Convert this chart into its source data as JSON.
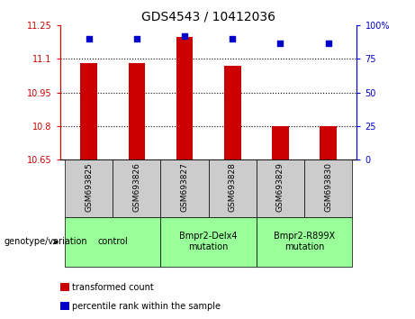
{
  "title": "GDS4543 / 10412036",
  "samples": [
    "GSM693825",
    "GSM693826",
    "GSM693827",
    "GSM693828",
    "GSM693829",
    "GSM693830"
  ],
  "bar_values": [
    11.08,
    11.08,
    11.2,
    11.07,
    10.8,
    10.8
  ],
  "percentile_values": [
    90,
    90,
    92,
    90,
    87,
    87
  ],
  "ylim_left": [
    10.65,
    11.25
  ],
  "ylim_right": [
    0,
    100
  ],
  "yticks_left": [
    10.65,
    10.8,
    10.95,
    11.1,
    11.25
  ],
  "yticks_right": [
    0,
    25,
    50,
    75,
    100
  ],
  "ytick_labels_left": [
    "10.65",
    "10.8",
    "10.95",
    "11.1",
    "11.25"
  ],
  "ytick_labels_right": [
    "0",
    "25",
    "50",
    "75",
    "100%"
  ],
  "bar_color": "#cc0000",
  "dot_color": "#0000cc",
  "bar_bottom": 10.65,
  "groups": [
    {
      "label": "control",
      "start": 0,
      "end": 2
    },
    {
      "label": "Bmpr2-Delx4\nmutation",
      "start": 2,
      "end": 4
    },
    {
      "label": "Bmpr2-R899X\nmutation",
      "start": 4,
      "end": 6
    }
  ],
  "group_bg_color": "#99ff99",
  "sample_bg_color": "#cccccc",
  "legend_items": [
    {
      "color": "#cc0000",
      "label": "transformed count"
    },
    {
      "color": "#0000cc",
      "label": "percentile rank within the sample"
    }
  ],
  "grid_color": "#000000",
  "left_axis_color": "#cc0000",
  "right_axis_color": "#0000cc",
  "genotype_label": "genotype/variation",
  "dot_size": 25,
  "bar_width": 0.35
}
